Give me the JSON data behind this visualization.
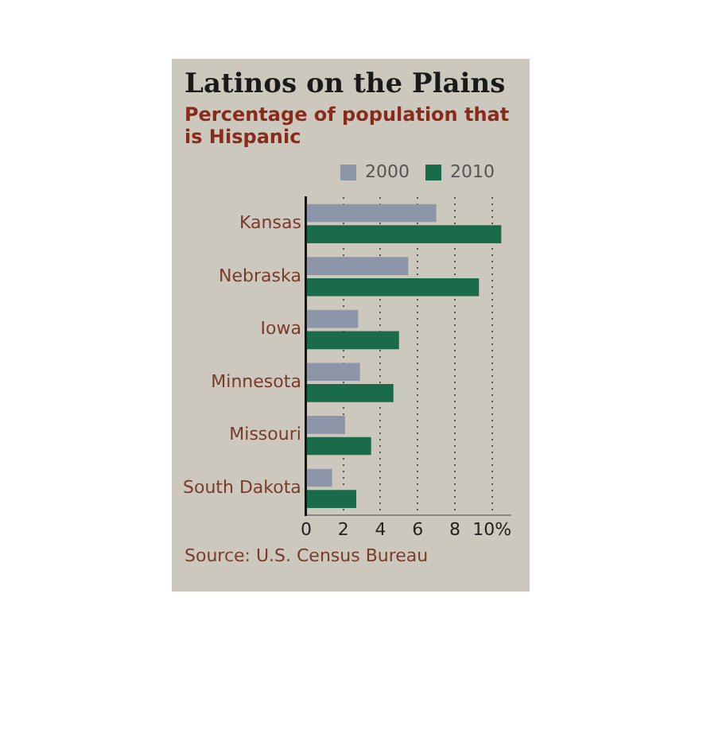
{
  "chart_data": {
    "type": "bar",
    "orientation": "horizontal",
    "title": "Latinos on the Plains",
    "subtitle": "Percentage of population that is Hispanic",
    "categories": [
      "Kansas",
      "Nebraska",
      "Iowa",
      "Minnesota",
      "Missouri",
      "South Dakota"
    ],
    "series": [
      {
        "name": "2000",
        "color": "#8c96a8",
        "values": [
          7.0,
          5.5,
          2.8,
          2.9,
          2.1,
          1.4
        ]
      },
      {
        "name": "2010",
        "color": "#1a6b4a",
        "values": [
          10.5,
          9.3,
          5.0,
          4.7,
          3.5,
          2.7
        ]
      }
    ],
    "xlim": [
      0,
      11
    ],
    "xticks": [
      0,
      2,
      4,
      6,
      8,
      {
        "value": 10,
        "label": "10%"
      }
    ],
    "grid": "x",
    "legend": "top right",
    "annotations": [
      "Source: U.S. Census Bureau"
    ]
  }
}
